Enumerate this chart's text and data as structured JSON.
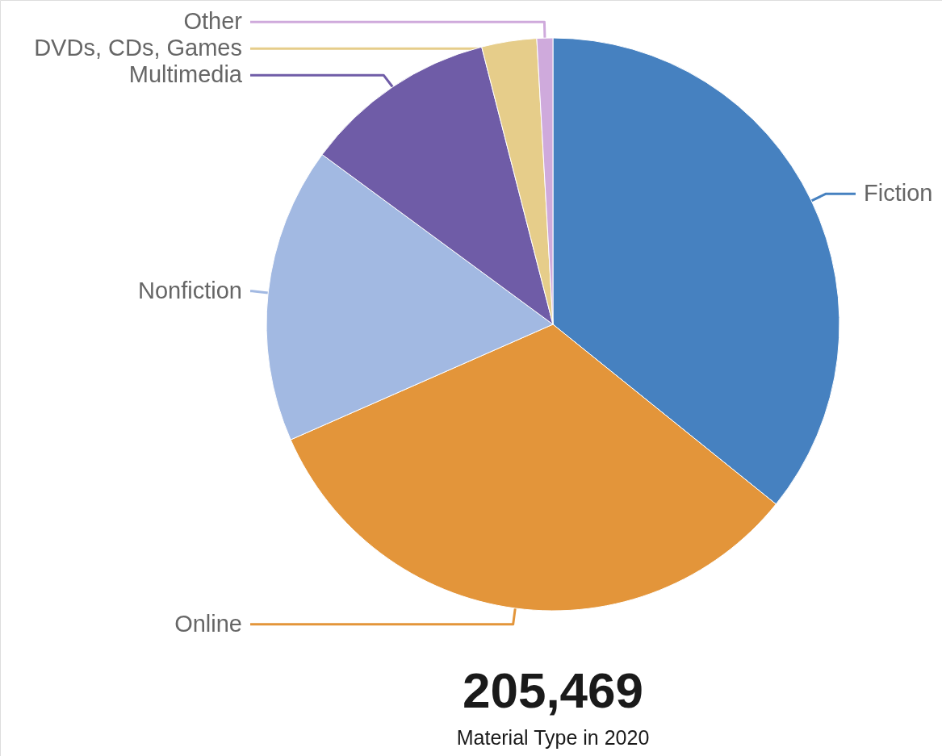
{
  "chart_data": {
    "type": "pie",
    "title": "205,469",
    "subtitle": "Material Type in 2020",
    "categories": [
      "Fiction",
      "Online",
      "Nonfiction",
      "Multimedia",
      "DVDs, CDs, Games",
      "Other"
    ],
    "values": [
      35.8,
      32.6,
      16.7,
      10.9,
      3.1,
      0.9
    ],
    "colors": [
      "#4681c0",
      "#e3953a",
      "#a2b9e2",
      "#6f5ca7",
      "#e6cd8a",
      "#cfaadc"
    ]
  }
}
